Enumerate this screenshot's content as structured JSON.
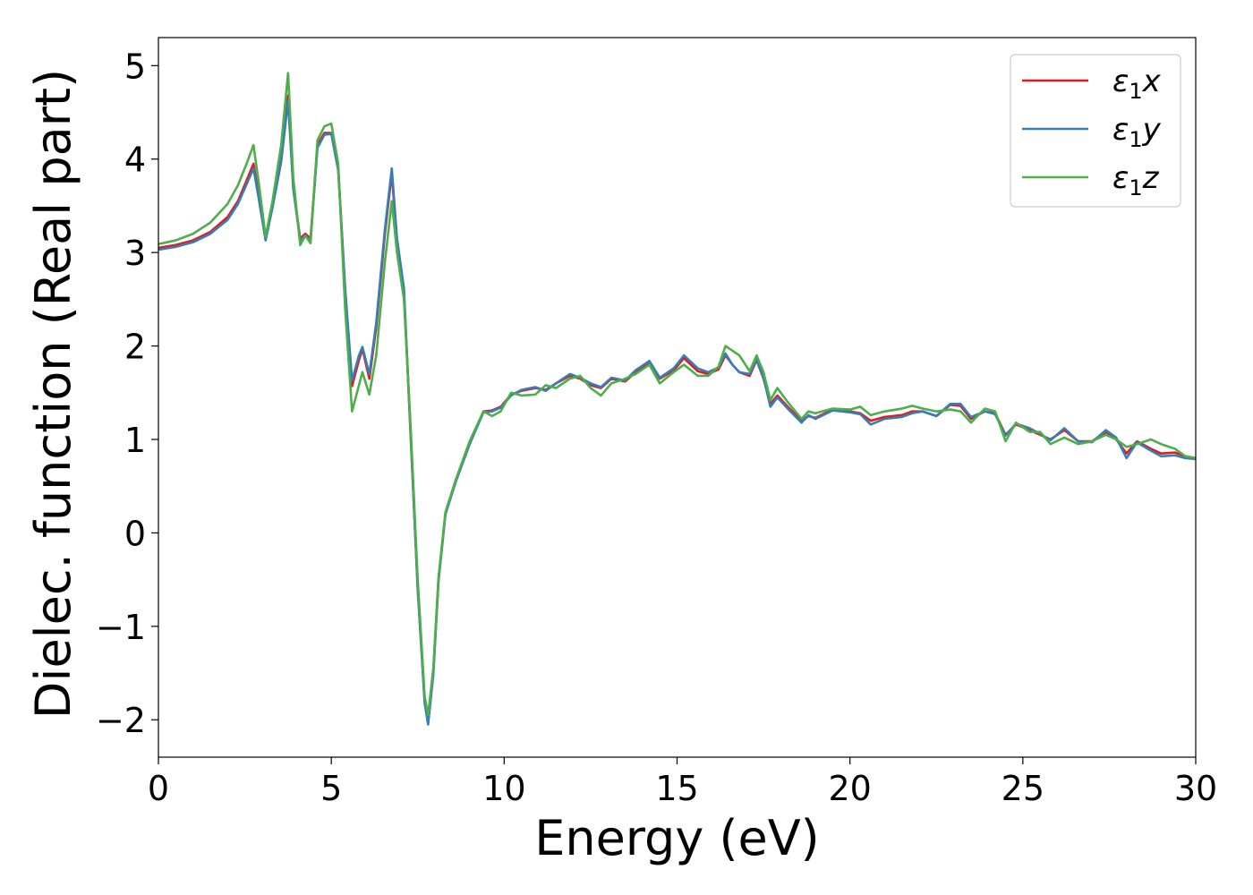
{
  "chart_data": {
    "type": "line",
    "title": "",
    "xlabel": "Energy (eV)",
    "ylabel": "Dielec. function (Real part)",
    "xlim": [
      0,
      30
    ],
    "ylim": [
      -2.4,
      5.3
    ],
    "xticks": [
      0,
      5,
      10,
      15,
      20,
      25,
      30
    ],
    "xtick_labels": [
      "0",
      "5",
      "10",
      "15",
      "20",
      "25",
      "30"
    ],
    "yticks": [
      -2,
      -1,
      0,
      1,
      2,
      3,
      4,
      5
    ],
    "ytick_labels": [
      "−2",
      "−1",
      "0",
      "1",
      "2",
      "3",
      "4",
      "5"
    ],
    "grid": false,
    "legend_position": "top-right",
    "series": [
      {
        "name": "ε1x",
        "legend_base": "ε",
        "legend_sub": "1",
        "legend_var": "x",
        "color": "#e41a1c",
        "x": [
          0,
          0.5,
          1,
          1.5,
          2,
          2.3,
          2.55,
          2.75,
          2.9,
          3.1,
          3.3,
          3.55,
          3.75,
          3.9,
          4.1,
          4.25,
          4.4,
          4.6,
          4.8,
          5.0,
          5.2,
          5.4,
          5.6,
          5.8,
          5.9,
          6.1,
          6.3,
          6.55,
          6.75,
          6.9,
          7.1,
          7.3,
          7.5,
          7.7,
          7.8,
          7.95,
          8.1,
          8.3,
          8.6,
          9.0,
          9.4,
          9.65,
          9.9,
          10.2,
          10.5,
          10.9,
          11.2,
          11.5,
          11.9,
          12.2,
          12.5,
          12.8,
          13.1,
          13.5,
          13.8,
          14.2,
          14.5,
          14.9,
          15.2,
          15.6,
          15.9,
          16.2,
          16.4,
          16.6,
          16.8,
          17.1,
          17.3,
          17.5,
          17.7,
          17.9,
          18.2,
          18.6,
          18.8,
          19.0,
          19.5,
          20.0,
          20.3,
          20.6,
          21.0,
          21.5,
          21.8,
          22.1,
          22.5,
          22.9,
          23.2,
          23.5,
          23.9,
          24.2,
          24.5,
          24.8,
          25.2,
          25.5,
          25.8,
          26.2,
          26.6,
          27.0,
          27.4,
          27.7,
          28.0,
          28.3,
          28.7,
          29.0,
          29.4,
          29.7,
          30.0
        ],
        "y": [
          3.05,
          3.08,
          3.13,
          3.22,
          3.38,
          3.55,
          3.77,
          3.95,
          3.6,
          3.15,
          3.5,
          4.0,
          4.68,
          3.7,
          3.15,
          3.2,
          3.15,
          4.15,
          4.28,
          4.28,
          3.9,
          2.6,
          1.57,
          1.85,
          1.97,
          1.65,
          2.2,
          3.2,
          3.85,
          3.1,
          2.6,
          1.0,
          -0.6,
          -1.8,
          -2.02,
          -1.5,
          -0.5,
          0.2,
          0.55,
          0.95,
          1.3,
          1.31,
          1.35,
          1.48,
          1.52,
          1.55,
          1.53,
          1.6,
          1.68,
          1.65,
          1.58,
          1.55,
          1.65,
          1.62,
          1.72,
          1.82,
          1.65,
          1.74,
          1.87,
          1.73,
          1.7,
          1.75,
          1.9,
          1.8,
          1.72,
          1.68,
          1.85,
          1.65,
          1.38,
          1.47,
          1.35,
          1.2,
          1.25,
          1.23,
          1.32,
          1.3,
          1.28,
          1.2,
          1.24,
          1.26,
          1.3,
          1.3,
          1.25,
          1.37,
          1.36,
          1.22,
          1.3,
          1.28,
          1.05,
          1.16,
          1.1,
          1.05,
          1.0,
          1.1,
          0.98,
          0.98,
          1.08,
          1.0,
          0.85,
          0.98,
          0.9,
          0.85,
          0.86,
          0.82,
          0.8
        ]
      },
      {
        "name": "ε1y",
        "legend_base": "ε",
        "legend_sub": "1",
        "legend_var": "y",
        "color": "#377eb8",
        "x": [
          0,
          0.5,
          1,
          1.5,
          2,
          2.3,
          2.55,
          2.75,
          2.9,
          3.1,
          3.3,
          3.55,
          3.75,
          3.9,
          4.1,
          4.25,
          4.4,
          4.6,
          4.8,
          5.0,
          5.2,
          5.4,
          5.6,
          5.8,
          5.9,
          6.1,
          6.3,
          6.55,
          6.75,
          6.9,
          7.1,
          7.3,
          7.5,
          7.7,
          7.8,
          7.95,
          8.1,
          8.3,
          8.6,
          9.0,
          9.4,
          9.65,
          9.9,
          10.2,
          10.5,
          10.9,
          11.2,
          11.5,
          11.9,
          12.2,
          12.5,
          12.8,
          13.1,
          13.5,
          13.8,
          14.2,
          14.5,
          14.9,
          15.2,
          15.6,
          15.9,
          16.2,
          16.4,
          16.6,
          16.8,
          17.1,
          17.3,
          17.5,
          17.7,
          17.9,
          18.2,
          18.6,
          18.8,
          19.0,
          19.5,
          20.0,
          20.3,
          20.6,
          21.0,
          21.5,
          21.8,
          22.1,
          22.5,
          22.9,
          23.2,
          23.5,
          23.9,
          24.2,
          24.5,
          24.8,
          25.2,
          25.5,
          25.8,
          26.2,
          26.6,
          27.0,
          27.4,
          27.7,
          28.0,
          28.3,
          28.7,
          29.0,
          29.4,
          29.7,
          30.0
        ],
        "y": [
          3.03,
          3.06,
          3.11,
          3.2,
          3.35,
          3.52,
          3.73,
          3.9,
          3.58,
          3.13,
          3.48,
          3.97,
          4.62,
          3.68,
          3.13,
          3.18,
          3.13,
          4.12,
          4.26,
          4.27,
          3.88,
          2.62,
          1.63,
          1.9,
          1.99,
          1.7,
          2.25,
          3.25,
          3.9,
          3.15,
          2.62,
          1.02,
          -0.6,
          -1.82,
          -2.05,
          -1.52,
          -0.52,
          0.2,
          0.55,
          0.95,
          1.29,
          1.3,
          1.34,
          1.47,
          1.53,
          1.56,
          1.52,
          1.6,
          1.7,
          1.66,
          1.6,
          1.56,
          1.66,
          1.63,
          1.74,
          1.84,
          1.66,
          1.76,
          1.9,
          1.76,
          1.72,
          1.77,
          1.92,
          1.8,
          1.72,
          1.7,
          1.86,
          1.66,
          1.35,
          1.45,
          1.33,
          1.18,
          1.26,
          1.22,
          1.31,
          1.29,
          1.27,
          1.16,
          1.22,
          1.24,
          1.28,
          1.3,
          1.25,
          1.38,
          1.38,
          1.24,
          1.3,
          1.27,
          1.04,
          1.17,
          1.12,
          1.06,
          0.99,
          1.12,
          0.98,
          0.97,
          1.1,
          1.02,
          0.8,
          0.97,
          0.88,
          0.82,
          0.83,
          0.8,
          0.79
        ]
      },
      {
        "name": "ε1z",
        "legend_base": "ε",
        "legend_sub": "1",
        "legend_var": "z",
        "color": "#4daf4a",
        "x": [
          0,
          0.5,
          1,
          1.5,
          2,
          2.3,
          2.55,
          2.75,
          2.9,
          3.1,
          3.3,
          3.55,
          3.75,
          3.9,
          4.1,
          4.25,
          4.4,
          4.6,
          4.8,
          5.0,
          5.2,
          5.4,
          5.6,
          5.8,
          5.9,
          6.1,
          6.3,
          6.55,
          6.75,
          6.9,
          7.1,
          7.3,
          7.5,
          7.7,
          7.8,
          7.95,
          8.1,
          8.3,
          8.6,
          9.0,
          9.4,
          9.65,
          9.9,
          10.2,
          10.5,
          10.9,
          11.2,
          11.5,
          11.9,
          12.2,
          12.5,
          12.8,
          13.1,
          13.5,
          13.8,
          14.2,
          14.5,
          14.9,
          15.2,
          15.6,
          15.9,
          16.2,
          16.4,
          16.6,
          16.8,
          17.1,
          17.3,
          17.5,
          17.7,
          17.9,
          18.2,
          18.6,
          18.8,
          19.0,
          19.5,
          20.0,
          20.3,
          20.6,
          21.0,
          21.5,
          21.8,
          22.1,
          22.5,
          22.9,
          23.2,
          23.5,
          23.9,
          24.2,
          24.5,
          24.8,
          25.2,
          25.5,
          25.8,
          26.2,
          26.6,
          27.0,
          27.4,
          27.7,
          28.0,
          28.3,
          28.7,
          29.0,
          29.4,
          29.7,
          30.0
        ],
        "y": [
          3.09,
          3.13,
          3.2,
          3.32,
          3.52,
          3.72,
          3.95,
          4.15,
          3.75,
          3.17,
          3.55,
          4.15,
          4.92,
          3.8,
          3.08,
          3.18,
          3.1,
          4.2,
          4.35,
          4.38,
          3.95,
          2.4,
          1.3,
          1.58,
          1.72,
          1.48,
          1.9,
          2.9,
          3.55,
          3.0,
          2.5,
          1.1,
          -0.5,
          -1.75,
          -1.95,
          -1.45,
          -0.48,
          0.22,
          0.57,
          0.98,
          1.3,
          1.25,
          1.3,
          1.5,
          1.47,
          1.48,
          1.58,
          1.55,
          1.65,
          1.68,
          1.55,
          1.47,
          1.6,
          1.65,
          1.7,
          1.8,
          1.6,
          1.72,
          1.8,
          1.68,
          1.68,
          1.78,
          2.0,
          1.95,
          1.9,
          1.73,
          1.9,
          1.72,
          1.42,
          1.55,
          1.4,
          1.22,
          1.3,
          1.28,
          1.33,
          1.32,
          1.35,
          1.26,
          1.3,
          1.33,
          1.36,
          1.33,
          1.3,
          1.32,
          1.3,
          1.18,
          1.33,
          1.3,
          0.98,
          1.18,
          1.08,
          1.08,
          0.95,
          1.02,
          0.95,
          0.98,
          1.05,
          1.0,
          0.92,
          0.95,
          1.0,
          0.95,
          0.9,
          0.82,
          0.8
        ]
      }
    ]
  }
}
